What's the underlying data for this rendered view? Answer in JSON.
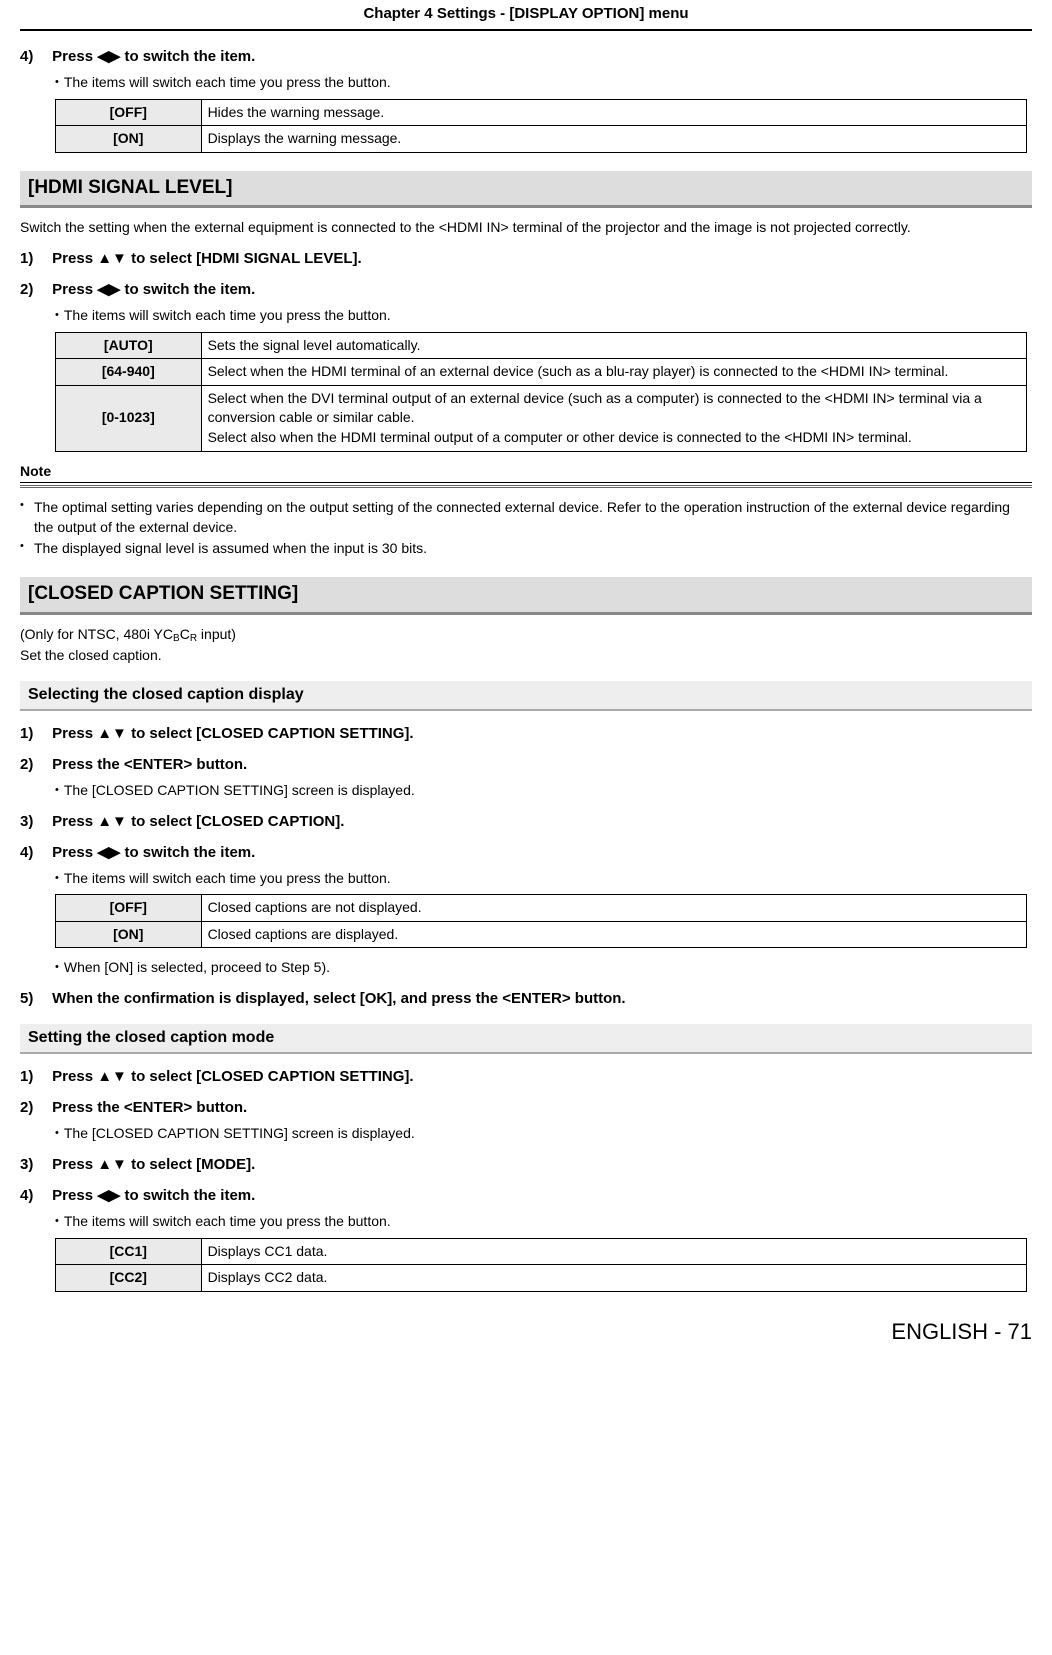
{
  "chapter_header": "Chapter 4   Settings - [DISPLAY OPTION] menu",
  "step4_top": {
    "num": "4)",
    "text": "Press ◀▶ to switch the item.",
    "bullet": "The items will switch each time you press the button.",
    "table": {
      "rows": [
        {
          "key": "[OFF]",
          "val": "Hides the warning message."
        },
        {
          "key": "[ON]",
          "val": "Displays the warning message."
        }
      ]
    }
  },
  "hdmi": {
    "head": "[HDMI SIGNAL LEVEL]",
    "intro": "Switch the setting when the external equipment is connected to the <HDMI IN> terminal of the projector and the image is not projected correctly.",
    "step1": {
      "num": "1)",
      "text": "Press ▲▼ to select [HDMI SIGNAL LEVEL]."
    },
    "step2": {
      "num": "2)",
      "text": "Press ◀▶ to switch the item.",
      "bullet": "The items will switch each time you press the button."
    },
    "table": {
      "rows": [
        {
          "key": "[AUTO]",
          "val": "Sets the signal level automatically."
        },
        {
          "key": "[64-940]",
          "val": "Select when the HDMI terminal of an external device (such as a blu-ray player) is connected to the <HDMI IN> terminal."
        },
        {
          "key": "[0-1023]",
          "val": "Select when the DVI terminal output of an external device (such as a computer) is connected to the <HDMI IN> terminal via a conversion cable or similar cable.\nSelect also when the HDMI terminal output of a computer or other device is connected to the <HDMI IN> terminal."
        }
      ]
    },
    "note_head": "Note",
    "note1": "The optimal setting varies depending on the output setting of the connected external device. Refer to the operation instruction of the external device regarding the output of the external device.",
    "note2": "The displayed signal level is assumed when the input is 30 bits."
  },
  "cc": {
    "head": "[CLOSED CAPTION SETTING]",
    "intro1": "(Only for NTSC, 480i YCBCR input)",
    "intro2": "Set the closed caption.",
    "sub_display": "Selecting the closed caption display",
    "disp_step1": {
      "num": "1)",
      "text": "Press ▲▼ to select [CLOSED CAPTION SETTING]."
    },
    "disp_step2": {
      "num": "2)",
      "text": "Press the <ENTER> button.",
      "bullet": "The [CLOSED CAPTION SETTING] screen is displayed."
    },
    "disp_step3": {
      "num": "3)",
      "text": "Press ▲▼ to select [CLOSED CAPTION]."
    },
    "disp_step4": {
      "num": "4)",
      "text": "Press ◀▶ to switch the item.",
      "bullet": "The items will switch each time you press the button."
    },
    "disp_table": {
      "rows": [
        {
          "key": "[OFF]",
          "val": "Closed captions are not displayed."
        },
        {
          "key": "[ON]",
          "val": "Closed captions are displayed."
        }
      ]
    },
    "disp_after": "When [ON] is selected, proceed to Step 5).",
    "disp_step5": {
      "num": "5)",
      "text": "When the confirmation is displayed, select [OK], and press the <ENTER> button."
    },
    "sub_mode": "Setting the closed caption mode",
    "mode_step1": {
      "num": "1)",
      "text": "Press ▲▼ to select [CLOSED CAPTION SETTING]."
    },
    "mode_step2": {
      "num": "2)",
      "text": "Press the <ENTER> button.",
      "bullet": "The [CLOSED CAPTION SETTING] screen is displayed."
    },
    "mode_step3": {
      "num": "3)",
      "text": "Press ▲▼ to select [MODE]."
    },
    "mode_step4": {
      "num": "4)",
      "text": "Press ◀▶ to switch the item.",
      "bullet": "The items will switch each time you press the button."
    },
    "mode_table": {
      "rows": [
        {
          "key": "[CC1]",
          "val": "Displays CC1 data."
        },
        {
          "key": "[CC2]",
          "val": "Displays CC2 data."
        }
      ]
    }
  },
  "footer": "ENGLISH - 71"
}
